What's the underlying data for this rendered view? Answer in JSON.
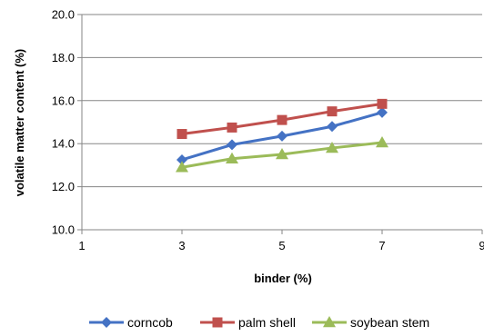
{
  "chart_data": {
    "type": "line",
    "title": "",
    "xlabel": "binder (%)",
    "ylabel": "volatile matter content (%)",
    "xlim": [
      1,
      9
    ],
    "ylim": [
      10.0,
      20.0
    ],
    "x_ticks": [
      1,
      3,
      5,
      7,
      9
    ],
    "y_ticks": [
      10.0,
      12.0,
      14.0,
      16.0,
      18.0,
      20.0
    ],
    "x_tick_labels": [
      "1",
      "3",
      "5",
      "7",
      "9"
    ],
    "y_tick_labels": [
      "10.0",
      "12.0",
      "14.0",
      "16.0",
      "18.0",
      "20.0"
    ],
    "grid": "horizontal",
    "legend_position": "bottom",
    "x": [
      3,
      4,
      5,
      6,
      7
    ],
    "series": [
      {
        "name": "corncob",
        "values": [
          13.25,
          13.95,
          14.35,
          14.8,
          15.45
        ],
        "color": "#4472C4",
        "marker": "diamond"
      },
      {
        "name": "palm shell",
        "values": [
          14.45,
          14.75,
          15.1,
          15.5,
          15.85
        ],
        "color": "#C0504D",
        "marker": "square"
      },
      {
        "name": "soybean stem",
        "values": [
          12.9,
          13.3,
          13.5,
          13.8,
          14.05
        ],
        "color": "#9BBB59",
        "marker": "triangle"
      }
    ]
  }
}
